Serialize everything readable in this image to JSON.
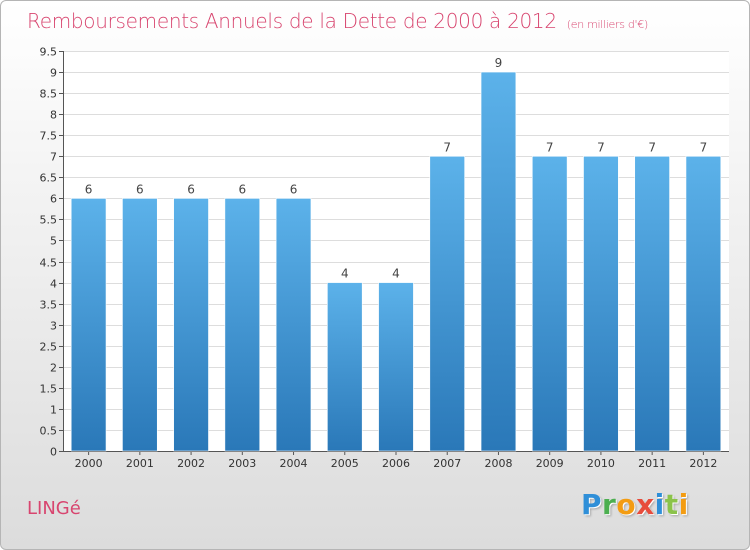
{
  "title": "Remboursements Annuels de la Dette de 2000 à 2012",
  "unit": "(en milliers d'€)",
  "place": "LINGé",
  "logo": {
    "letters": [
      "P",
      "r",
      "o",
      "x",
      "i",
      "t",
      "i"
    ],
    "colors": [
      "#2f8fd8",
      "#4caf50",
      "#f39c12",
      "#e74c3c",
      "#2f8fd8",
      "#8bc34a",
      "#f39c12"
    ]
  },
  "colors": {
    "bar": "#4aa3e0",
    "bar_dark": "#2a78b8",
    "title": "#d8456f"
  },
  "chart_data": {
    "type": "bar",
    "categories": [
      "2000",
      "2001",
      "2002",
      "2003",
      "2004",
      "2005",
      "2006",
      "2007",
      "2008",
      "2009",
      "2010",
      "2011",
      "2012"
    ],
    "values": [
      6,
      6,
      6,
      6,
      6,
      4,
      4,
      7,
      9,
      7,
      7,
      7,
      7
    ],
    "value_labels": [
      "6",
      "6",
      "6",
      "6",
      "6",
      "4",
      "4",
      "7",
      "9",
      "7",
      "7",
      "7",
      "7"
    ],
    "ylim": [
      0,
      9.5
    ],
    "yticks": [
      "0",
      "0.5",
      "1",
      "1.5",
      "2",
      "2.5",
      "3",
      "3.5",
      "4",
      "4.5",
      "5",
      "5.5",
      "6",
      "6.5",
      "7",
      "7.5",
      "8",
      "8.5",
      "9",
      "9.5"
    ],
    "grid": true
  }
}
